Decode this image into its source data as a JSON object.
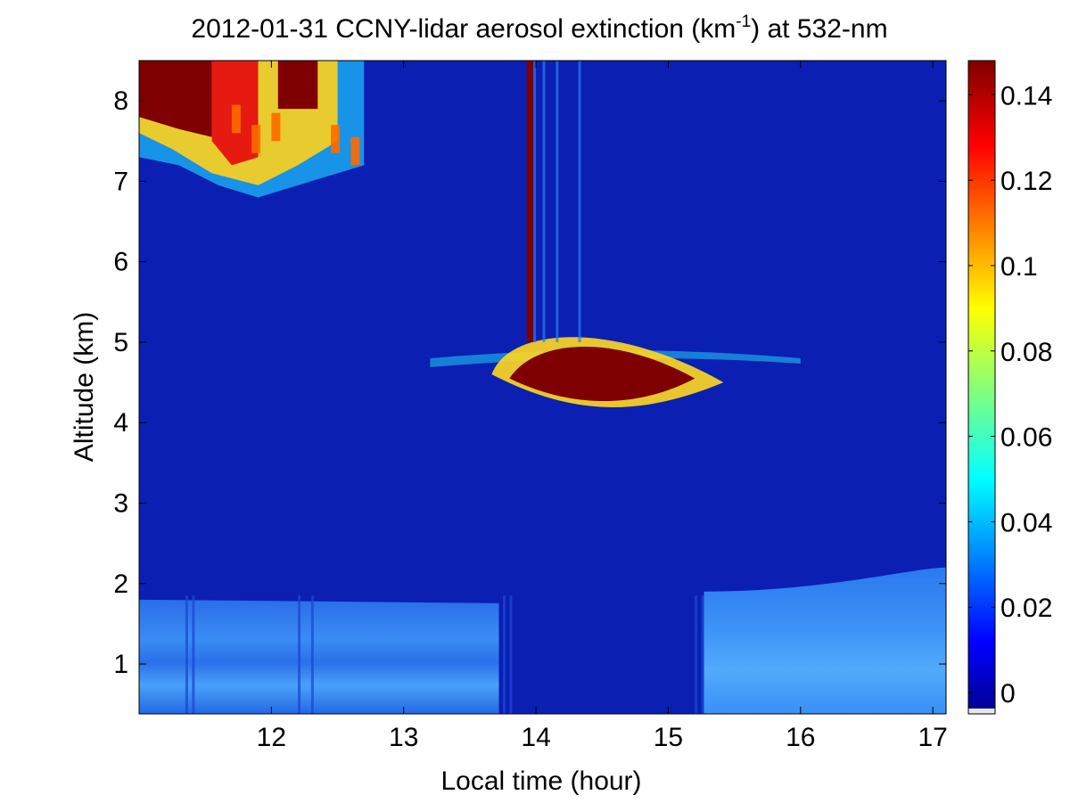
{
  "chart_data": {
    "type": "heatmap",
    "title_main": "2012-01-31 CCNY-lidar aerosol extinction (km",
    "title_sup": "-1",
    "title_tail": ") at 532-nm",
    "xlabel": "Local time (hour)",
    "ylabel": "Altitude (km)",
    "xlim": [
      11.0,
      17.1
    ],
    "ylim": [
      0.38,
      8.5
    ],
    "x_ticks": [
      12,
      13,
      14,
      15,
      16,
      17
    ],
    "y_ticks": [
      1,
      2,
      3,
      4,
      5,
      6,
      7,
      8
    ],
    "colorbar": {
      "colormap": "jet",
      "range": [
        -0.005,
        0.148
      ],
      "ticks": [
        0,
        0.02,
        0.04,
        0.06,
        0.08,
        0.1,
        0.12,
        0.14
      ],
      "tick_labels": [
        "0",
        "0.02",
        "0.04",
        "0.06",
        "0.08",
        "0.1",
        "0.12",
        "0.14"
      ]
    },
    "colors": {
      "background": "#0b1fb3",
      "boundary_layer": "#2f7ff0",
      "cloud_core": "#7f0000"
    },
    "features": [
      {
        "kind": "boundary_layer",
        "x_range": [
          11.0,
          13.72
        ],
        "top_km": 1.8,
        "bottom_km": 0.38,
        "extinction": 0.03
      },
      {
        "kind": "boundary_layer",
        "x_range": [
          15.27,
          17.1
        ],
        "top_km": [
          1.9,
          2.2
        ],
        "bottom_km": 0.38,
        "extinction": 0.035
      },
      {
        "kind": "cirrus",
        "x_range": [
          11.0,
          12.7
        ],
        "bottom_km": [
          7.3,
          6.8
        ],
        "top_km": 8.5,
        "extinction": 0.15
      },
      {
        "kind": "mid_cloud",
        "x_range": [
          13.8,
          15.35
        ],
        "bottom_km": 4.15,
        "top_km": 5.2,
        "extinction": 0.15
      },
      {
        "kind": "thin_layer",
        "x_range": [
          13.2,
          16.0
        ],
        "altitude_km": 4.8,
        "extinction": 0.05
      },
      {
        "kind": "streak",
        "x": 13.95,
        "y_range": [
          5.0,
          8.5
        ],
        "extinction": 0.15
      }
    ]
  }
}
